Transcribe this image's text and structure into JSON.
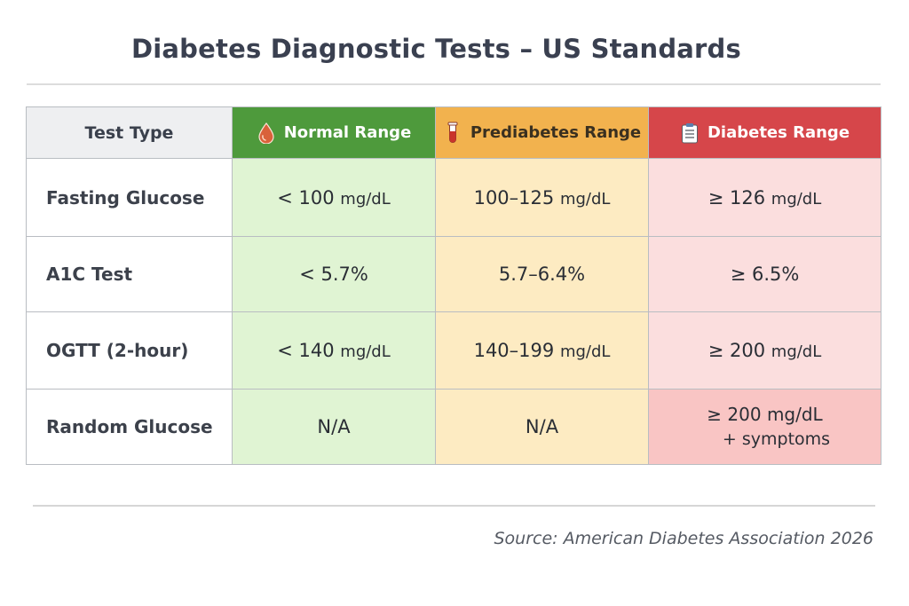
{
  "title": "Diabetes Diagnostic Tests – US Standards",
  "headers": {
    "test_type": "Test Type",
    "normal": "Normal Range",
    "prediabetes": "Prediabetes Range",
    "diabetes": "Diabetes Range"
  },
  "icons": {
    "normal": "blood-drop-icon",
    "prediabetes": "test-tube-icon",
    "diabetes": "clipboard-icon"
  },
  "colors": {
    "normal_header": "#4e9a3c",
    "prediabetes_header": "#f2b24e",
    "diabetes_header": "#d6464a",
    "normal_cell": "#e0f4d3",
    "prediabetes_cell": "#fdebc2",
    "diabetes_cell": "#fbdede"
  },
  "rows": [
    {
      "label": "Fasting Glucose",
      "normal": {
        "value": "< 100",
        "unit": "mg/dL"
      },
      "prediabetes": {
        "value": "100–125",
        "unit": "mg/dL"
      },
      "diabetes": {
        "value": "≥ 126",
        "unit": "mg/dL"
      }
    },
    {
      "label": "A1C Test",
      "normal": {
        "value": "< 5.7%",
        "unit": ""
      },
      "prediabetes": {
        "value": "5.7–6.4%",
        "unit": ""
      },
      "diabetes": {
        "value": "≥ 6.5%",
        "unit": ""
      }
    },
    {
      "label": "OGTT (2-hour)",
      "normal": {
        "value": "< 140",
        "unit": "mg/dL"
      },
      "prediabetes": {
        "value": "140–199",
        "unit": "mg/dL"
      },
      "diabetes": {
        "value": "≥ 200",
        "unit": "mg/dL"
      }
    },
    {
      "label": "Random Glucose",
      "normal": {
        "value": "N/A",
        "unit": ""
      },
      "prediabetes": {
        "value": "N/A",
        "unit": ""
      },
      "diabetes": {
        "line1": "≥ 200 mg/dL",
        "line2": "+ symptoms"
      }
    }
  ],
  "source": "Source: American Diabetes Association 2026"
}
